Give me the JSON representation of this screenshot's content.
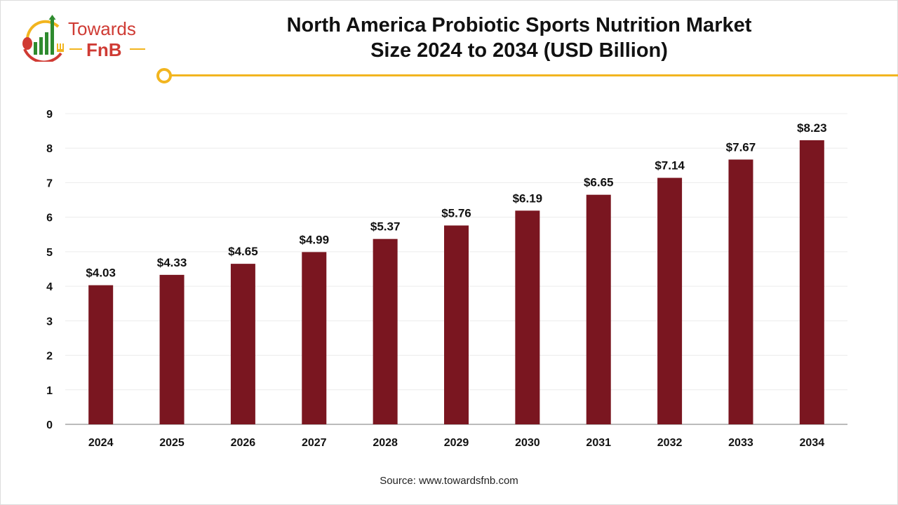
{
  "logo": {
    "line1": "Towards",
    "line2": "FnB"
  },
  "title_line1": "North America Probiotic Sports Nutrition Market",
  "title_line2": "Size 2024 to 2034 (USD Billion)",
  "source": "Source: www.towardsfnb.com",
  "chart_data": {
    "type": "bar",
    "title": "North America Probiotic Sports Nutrition Market Size 2024 to 2034 (USD Billion)",
    "categories": [
      "2024",
      "2025",
      "2026",
      "2027",
      "2028",
      "2029",
      "2030",
      "2031",
      "2032",
      "2033",
      "2034"
    ],
    "values": [
      4.03,
      4.33,
      4.65,
      4.99,
      5.37,
      5.76,
      6.19,
      6.65,
      7.14,
      7.67,
      8.23
    ],
    "data_labels": [
      "$4.03",
      "$4.33",
      "$4.65",
      "$4.99",
      "$5.37",
      "$5.76",
      "$6.19",
      "$6.65",
      "$7.14",
      "$7.67",
      "$8.23"
    ],
    "yticks": [
      0,
      1,
      2,
      3,
      4,
      5,
      6,
      7,
      8,
      9
    ],
    "ylim": [
      0,
      9
    ],
    "xlabel": "",
    "ylabel": "",
    "grid": true,
    "bar_color": "#7a1620",
    "accent_color": "#f2b51f"
  }
}
